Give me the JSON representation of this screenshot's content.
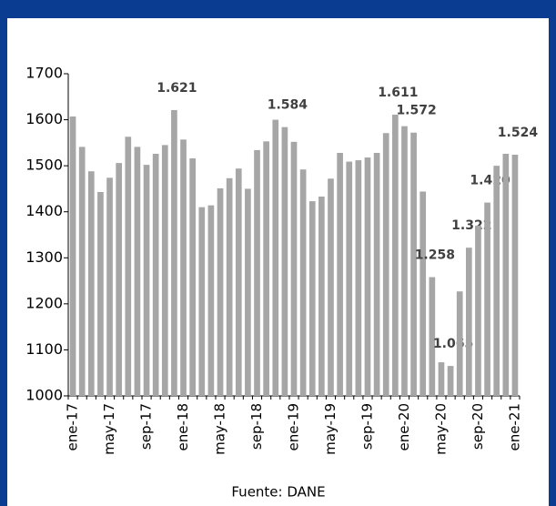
{
  "chart_data": {
    "type": "bar",
    "source": "Fuente: DANE",
    "color": "#a6a6a6",
    "categories": [
      "ene-17",
      null,
      null,
      null,
      "may-17",
      null,
      null,
      null,
      "sep-17",
      null,
      null,
      null,
      "ene-18",
      null,
      null,
      null,
      "may-18",
      null,
      null,
      null,
      "sep-18",
      null,
      null,
      null,
      "ene-19",
      null,
      null,
      null,
      "may-19",
      null,
      null,
      null,
      "sep-19",
      null,
      null,
      null,
      "ene-20",
      null,
      null,
      null,
      "may-20",
      null,
      null,
      null,
      "sep-20",
      null,
      null,
      null,
      "ene-21"
    ],
    "values": [
      1607,
      1541,
      1488,
      1443,
      1474,
      1506,
      1563,
      1541,
      1502,
      1526,
      1545,
      1621,
      1557,
      1516,
      1410,
      1414,
      1451,
      1473,
      1494,
      1450,
      1534,
      1553,
      1600,
      1584,
      1552,
      1492,
      1423,
      1433,
      1472,
      1528,
      1509,
      1512,
      1518,
      1528,
      1571,
      1611,
      1586,
      1572,
      1444,
      1258,
      1073,
      1065,
      1227,
      1322,
      1370,
      1420,
      1500,
      1526,
      1524
    ],
    "value_labels": [
      null,
      null,
      null,
      null,
      null,
      null,
      null,
      null,
      null,
      null,
      null,
      "1.621",
      null,
      null,
      null,
      null,
      null,
      null,
      null,
      null,
      null,
      null,
      null,
      "1.584",
      null,
      null,
      null,
      null,
      null,
      null,
      null,
      null,
      null,
      null,
      null,
      "1.611",
      null,
      "1.572",
      null,
      "1.258",
      null,
      "1.065",
      null,
      "1.322",
      null,
      "1.420",
      null,
      null,
      "1.524"
    ],
    "ylim": [
      1000,
      1700
    ],
    "yticks": [
      1000,
      1100,
      1200,
      1300,
      1400,
      1500,
      1600,
      1700
    ]
  }
}
